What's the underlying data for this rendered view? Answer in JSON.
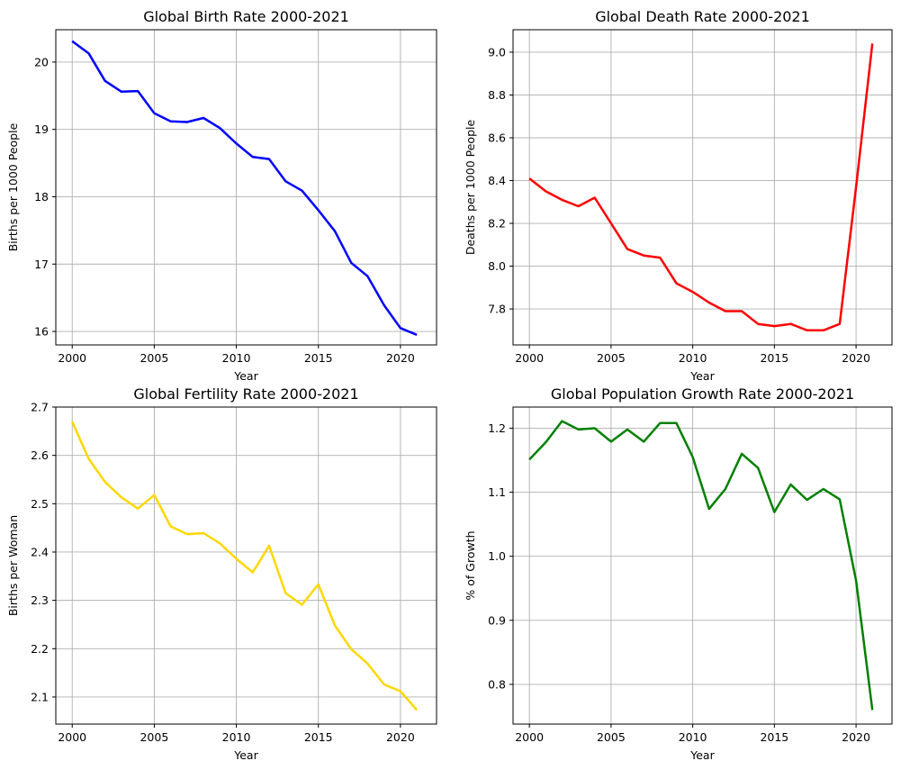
{
  "chart_data": [
    {
      "type": "line",
      "title": "Global Birth Rate 2000-2021",
      "xlabel": "Year",
      "ylabel": "Births per 1000 People",
      "grid": true,
      "color": "#0000ff",
      "xlim": [
        1999,
        2022.2
      ],
      "ylim": [
        15.8,
        20.48
      ],
      "xticks": [
        2000,
        2005,
        2010,
        2015,
        2020
      ],
      "yticks": [
        16,
        17,
        18,
        19,
        20
      ],
      "ytick_labels": [
        "16",
        "17",
        "18",
        "19",
        "20"
      ],
      "x": [
        2000,
        2001,
        2002,
        2003,
        2004,
        2005,
        2006,
        2007,
        2008,
        2009,
        2010,
        2011,
        2012,
        2013,
        2014,
        2015,
        2016,
        2017,
        2018,
        2019,
        2020,
        2021
      ],
      "y": [
        20.31,
        20.13,
        19.72,
        19.56,
        19.57,
        19.24,
        19.12,
        19.11,
        19.17,
        19.02,
        18.79,
        18.59,
        18.56,
        18.23,
        18.09,
        17.8,
        17.49,
        17.02,
        16.82,
        16.39,
        16.05,
        15.95
      ]
    },
    {
      "type": "line",
      "title": "Global Death Rate 2000-2021",
      "xlabel": "Year",
      "ylabel": "Deaths per 1000 People",
      "grid": true,
      "color": "#ff0000",
      "xlim": [
        1999,
        2022.2
      ],
      "ylim": [
        7.632,
        9.105
      ],
      "xticks": [
        2000,
        2005,
        2010,
        2015,
        2020
      ],
      "yticks": [
        7.8,
        8.0,
        8.2,
        8.4,
        8.6,
        8.8,
        9.0
      ],
      "ytick_labels": [
        "7.8",
        "8.0",
        "8.2",
        "8.4",
        "8.6",
        "8.8",
        "9.0"
      ],
      "x": [
        2000,
        2001,
        2002,
        2003,
        2004,
        2005,
        2006,
        2007,
        2008,
        2009,
        2010,
        2011,
        2012,
        2013,
        2014,
        2015,
        2016,
        2017,
        2018,
        2019,
        2020,
        2021
      ],
      "y": [
        8.41,
        8.35,
        8.31,
        8.28,
        8.32,
        8.2,
        8.08,
        8.05,
        8.04,
        7.92,
        7.88,
        7.83,
        7.79,
        7.79,
        7.73,
        7.72,
        7.73,
        7.7,
        7.7,
        7.73,
        8.37,
        9.04
      ]
    },
    {
      "type": "line",
      "title": "Global Fertility Rate 2000-2021",
      "xlabel": "Year",
      "ylabel": "Births per Woman",
      "grid": true,
      "color": "#ffd700",
      "xlim": [
        1999,
        2022.2
      ],
      "ylim": [
        2.044,
        2.7
      ],
      "xticks": [
        2000,
        2005,
        2010,
        2015,
        2020
      ],
      "yticks": [
        2.1,
        2.2,
        2.3,
        2.4,
        2.5,
        2.6,
        2.7
      ],
      "ytick_labels": [
        "2.1",
        "2.2",
        "2.3",
        "2.4",
        "2.5",
        "2.6",
        "2.7"
      ],
      "x": [
        2000,
        2001,
        2002,
        2003,
        2004,
        2005,
        2006,
        2007,
        2008,
        2009,
        2010,
        2011,
        2012,
        2013,
        2014,
        2015,
        2016,
        2017,
        2018,
        2019,
        2020,
        2021
      ],
      "y": [
        2.67,
        2.593,
        2.545,
        2.513,
        2.49,
        2.518,
        2.453,
        2.437,
        2.439,
        2.418,
        2.386,
        2.358,
        2.413,
        2.315,
        2.291,
        2.333,
        2.248,
        2.199,
        2.169,
        2.126,
        2.112,
        2.073
      ]
    },
    {
      "type": "line",
      "title": "Global Population Growth Rate 2000-2021",
      "xlabel": "Year",
      "ylabel": "% of Growth",
      "grid": true,
      "color": "#008000",
      "xlim": [
        1999,
        2022.2
      ],
      "ylim": [
        0.738,
        1.233
      ],
      "xticks": [
        2000,
        2005,
        2010,
        2015,
        2020
      ],
      "yticks": [
        0.8,
        0.9,
        1.0,
        1.1,
        1.2
      ],
      "ytick_labels": [
        "0.8",
        "0.9",
        "1.0",
        "1.1",
        "1.2"
      ],
      "x": [
        2000,
        2001,
        2002,
        2003,
        2004,
        2005,
        2006,
        2007,
        2008,
        2009,
        2010,
        2011,
        2012,
        2013,
        2014,
        2015,
        2016,
        2017,
        2018,
        2019,
        2020,
        2021
      ],
      "y": [
        1.151,
        1.178,
        1.211,
        1.198,
        1.2,
        1.179,
        1.198,
        1.179,
        1.208,
        1.208,
        1.155,
        1.074,
        1.105,
        1.16,
        1.138,
        1.069,
        1.112,
        1.088,
        1.105,
        1.089,
        0.962,
        0.76
      ]
    }
  ]
}
